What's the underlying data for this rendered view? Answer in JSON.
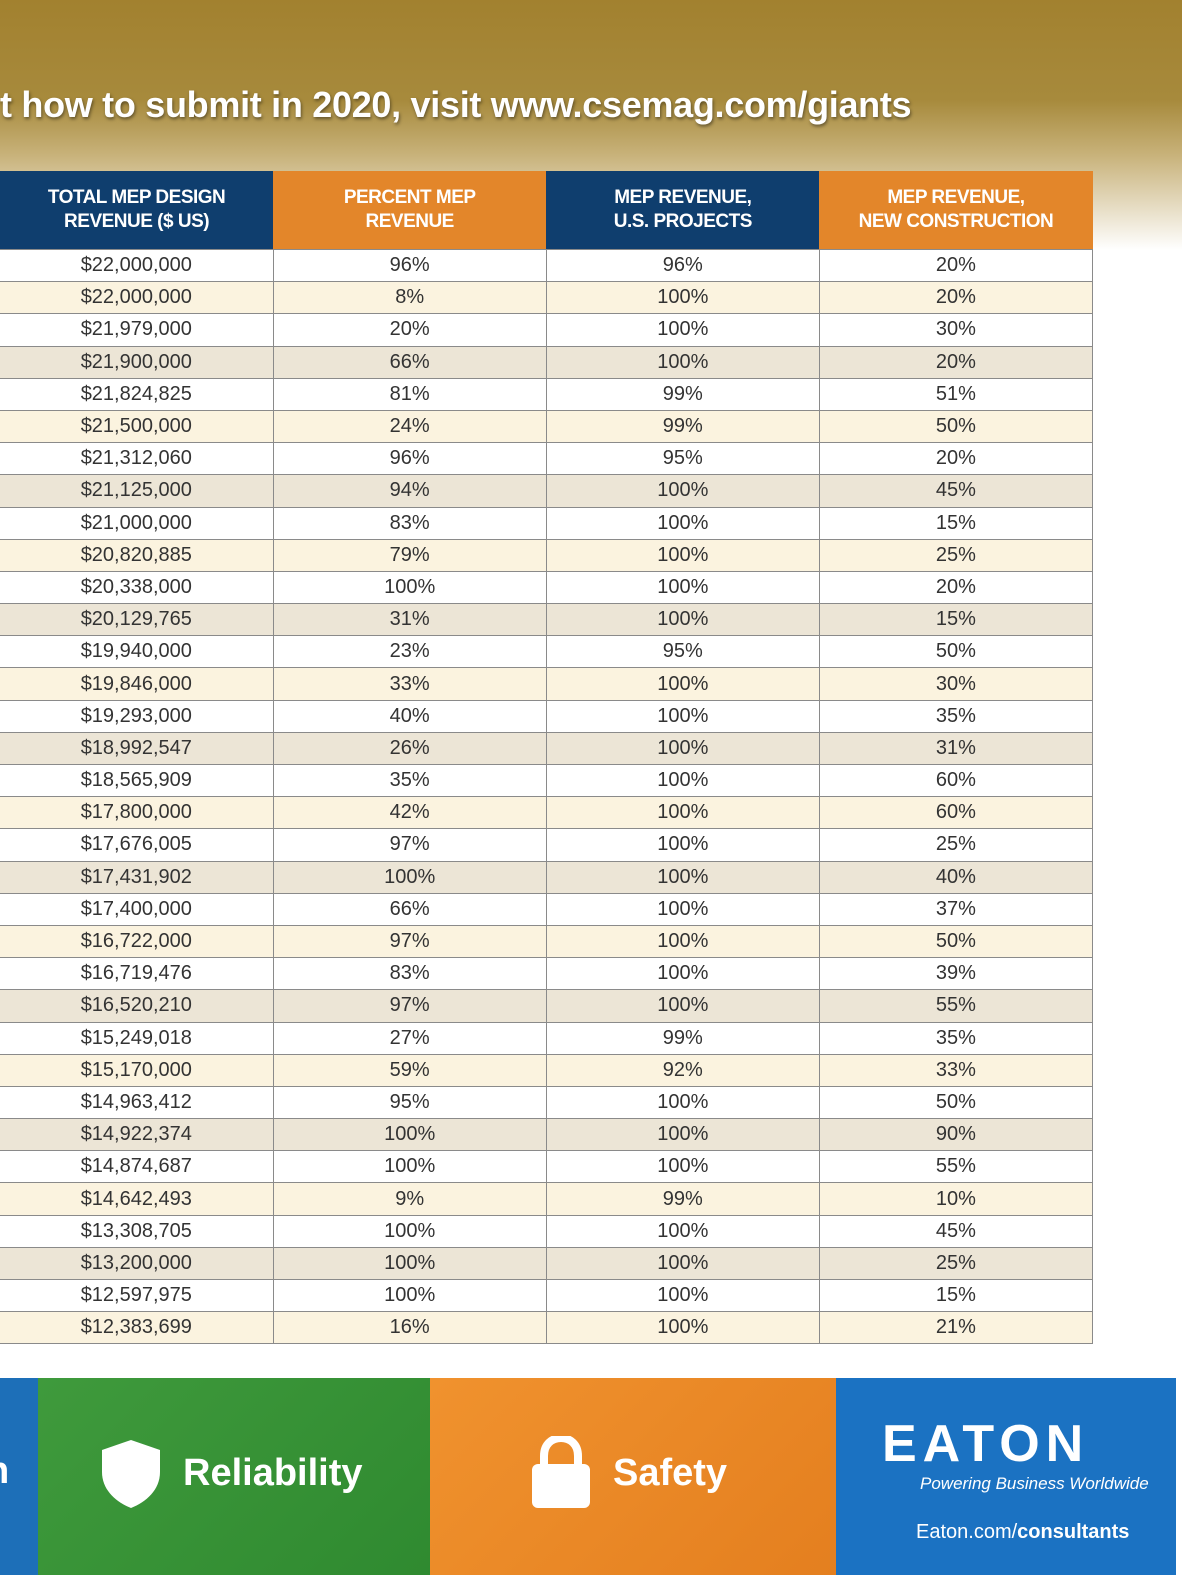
{
  "header": {
    "text": "t how to submit in 2020, visit www.csemag.com/giants"
  },
  "table": {
    "columns": [
      "TOTAL MEP DESIGN\nREVENUE ($ US)",
      "PERCENT MEP\nREVENUE",
      "MEP REVENUE,\nU.S. PROJECTS",
      "MEP REVENUE,\nNEW CONSTRUCTION"
    ],
    "rows": [
      [
        "$22,000,000",
        "96%",
        "96%",
        "20%"
      ],
      [
        "$22,000,000",
        "8%",
        "100%",
        "20%"
      ],
      [
        "$21,979,000",
        "20%",
        "100%",
        "30%"
      ],
      [
        "$21,900,000",
        "66%",
        "100%",
        "20%"
      ],
      [
        "$21,824,825",
        "81%",
        "99%",
        "51%"
      ],
      [
        "$21,500,000",
        "24%",
        "99%",
        "50%"
      ],
      [
        "$21,312,060",
        "96%",
        "95%",
        "20%"
      ],
      [
        "$21,125,000",
        "94%",
        "100%",
        "45%"
      ],
      [
        "$21,000,000",
        "83%",
        "100%",
        "15%"
      ],
      [
        "$20,820,885",
        "79%",
        "100%",
        "25%"
      ],
      [
        "$20,338,000",
        "100%",
        "100%",
        "20%"
      ],
      [
        "$20,129,765",
        "31%",
        "100%",
        "15%"
      ],
      [
        "$19,940,000",
        "23%",
        "95%",
        "50%"
      ],
      [
        "$19,846,000",
        "33%",
        "100%",
        "30%"
      ],
      [
        "$19,293,000",
        "40%",
        "100%",
        "35%"
      ],
      [
        "$18,992,547",
        "26%",
        "100%",
        "31%"
      ],
      [
        "$18,565,909",
        "35%",
        "100%",
        "60%"
      ],
      [
        "$17,800,000",
        "42%",
        "100%",
        "60%"
      ],
      [
        "$17,676,005",
        "97%",
        "100%",
        "25%"
      ],
      [
        "$17,431,902",
        "100%",
        "100%",
        "40%"
      ],
      [
        "$17,400,000",
        "66%",
        "100%",
        "37%"
      ],
      [
        "$16,722,000",
        "97%",
        "100%",
        "50%"
      ],
      [
        "$16,719,476",
        "83%",
        "100%",
        "39%"
      ],
      [
        "$16,520,210",
        "97%",
        "100%",
        "55%"
      ],
      [
        "$15,249,018",
        "27%",
        "99%",
        "35%"
      ],
      [
        "$15,170,000",
        "59%",
        "92%",
        "33%"
      ],
      [
        "$14,963,412",
        "95%",
        "100%",
        "50%"
      ],
      [
        "$14,922,374",
        "100%",
        "100%",
        "90%"
      ],
      [
        "$14,874,687",
        "100%",
        "100%",
        "55%"
      ],
      [
        "$14,642,493",
        "9%",
        "99%",
        "10%"
      ],
      [
        "$13,308,705",
        "100%",
        "100%",
        "45%"
      ],
      [
        "$13,200,000",
        "100%",
        "100%",
        "25%"
      ],
      [
        "$12,597,975",
        "100%",
        "100%",
        "15%"
      ],
      [
        "$12,383,699",
        "16%",
        "100%",
        "21%"
      ]
    ]
  },
  "footer": {
    "partial": "n",
    "reliability": "Reliability",
    "safety": "Safety",
    "logo": "EATON",
    "tagline": "Powering Business Worldwide",
    "url_prefix": "Eaton.com/",
    "url_bold": "consultants"
  }
}
